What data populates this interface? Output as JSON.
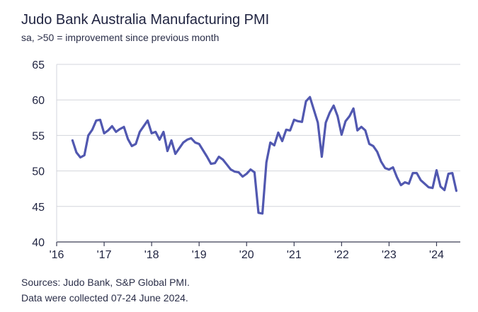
{
  "chart_data": {
    "type": "line",
    "title": "Judo Bank Australia Manufacturing PMI",
    "subtitle": "sa, >50 = improvement since previous month",
    "xlabel": "",
    "ylabel": "",
    "ylim": [
      40,
      65
    ],
    "xlim": [
      2016.0,
      2024.5
    ],
    "y_ticks": [
      40,
      45,
      50,
      55,
      60,
      65
    ],
    "x_ticks": [
      {
        "value": 2016,
        "label": "'16"
      },
      {
        "value": 2017,
        "label": "'17"
      },
      {
        "value": 2018,
        "label": "'18"
      },
      {
        "value": 2019,
        "label": "'19"
      },
      {
        "value": 2020,
        "label": "'20"
      },
      {
        "value": 2021,
        "label": "'21"
      },
      {
        "value": 2022,
        "label": "'22"
      },
      {
        "value": 2023,
        "label": "'23"
      },
      {
        "value": 2024,
        "label": "'24"
      }
    ],
    "grid": true,
    "series": [
      {
        "name": "Judo Bank Australia Manufacturing PMI",
        "color": "#5158b0",
        "start": "2016-05",
        "values": [
          54.3,
          52.6,
          51.9,
          52.2,
          55.0,
          55.8,
          57.1,
          57.2,
          55.3,
          55.7,
          56.3,
          55.5,
          55.9,
          56.2,
          54.5,
          53.5,
          53.8,
          55.5,
          56.3,
          57.1,
          55.3,
          55.5,
          54.4,
          55.5,
          52.8,
          54.3,
          52.4,
          53.2,
          54.0,
          54.4,
          54.6,
          54.0,
          53.8,
          52.9,
          52.0,
          51.0,
          51.1,
          52.0,
          51.6,
          50.9,
          50.2,
          49.9,
          49.8,
          49.2,
          49.6,
          50.2,
          49.8,
          44.1,
          44.0,
          51.2,
          54.0,
          53.6,
          55.4,
          54.2,
          55.8,
          55.7,
          57.2,
          57.0,
          56.9,
          59.8,
          60.4,
          58.6,
          56.8,
          52.0,
          56.8,
          58.2,
          59.2,
          57.7,
          55.1,
          57.0,
          57.7,
          58.8,
          55.7,
          56.2,
          55.7,
          53.8,
          53.5,
          52.7,
          51.3,
          50.4,
          50.2,
          50.5,
          49.1,
          48.0,
          48.4,
          48.2,
          49.7,
          49.7,
          48.7,
          48.2,
          47.7,
          47.6,
          50.1,
          47.8,
          47.3,
          49.6,
          49.7,
          47.2
        ]
      }
    ]
  },
  "sources": {
    "line1": "Sources: Judo Bank, S&P Global PMI.",
    "line2": "Data were collected 07-24 June 2024."
  }
}
